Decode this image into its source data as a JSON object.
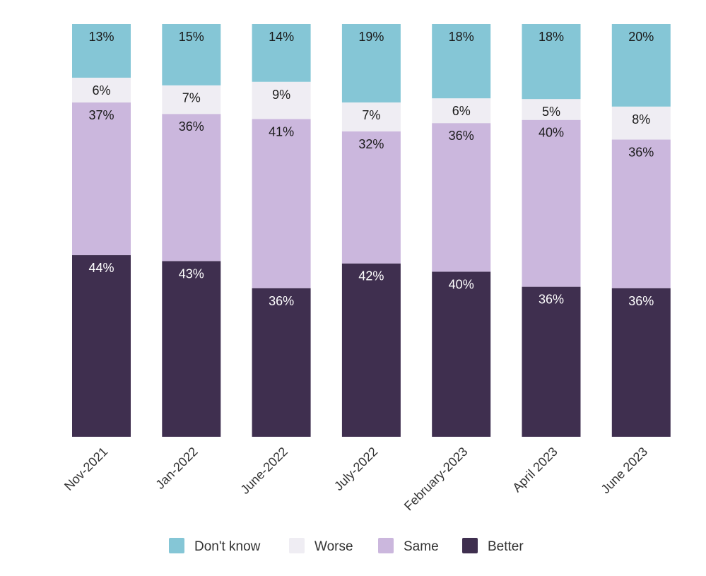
{
  "chart_data": {
    "type": "bar",
    "stacked": true,
    "categories": [
      "Nov-2021",
      "Jan-2022",
      "June-2022",
      "July-2022",
      "February-2023",
      "April 2023",
      "June 2023"
    ],
    "series": [
      {
        "name": "Better",
        "values": [
          44,
          43,
          36,
          42,
          40,
          36,
          36
        ],
        "color": "#3f2f4f",
        "label_color": "#ffffff"
      },
      {
        "name": "Same",
        "values": [
          37,
          36,
          41,
          32,
          36,
          40,
          36
        ],
        "color": "#cbb7dd",
        "label_color": "#1a1a1a"
      },
      {
        "name": "Worse",
        "values": [
          6,
          7,
          9,
          7,
          6,
          5,
          8
        ],
        "color": "#efedf3",
        "label_color": "#1a1a1a"
      },
      {
        "name": "Don't know",
        "values": [
          13,
          15,
          14,
          19,
          18,
          18,
          20
        ],
        "color": "#85c6d6",
        "label_color": "#1a1a1a"
      }
    ],
    "value_suffix": "%",
    "legend_order": [
      "Don't know",
      "Worse",
      "Same",
      "Better"
    ],
    "legend_position": "bottom",
    "grid": false
  }
}
